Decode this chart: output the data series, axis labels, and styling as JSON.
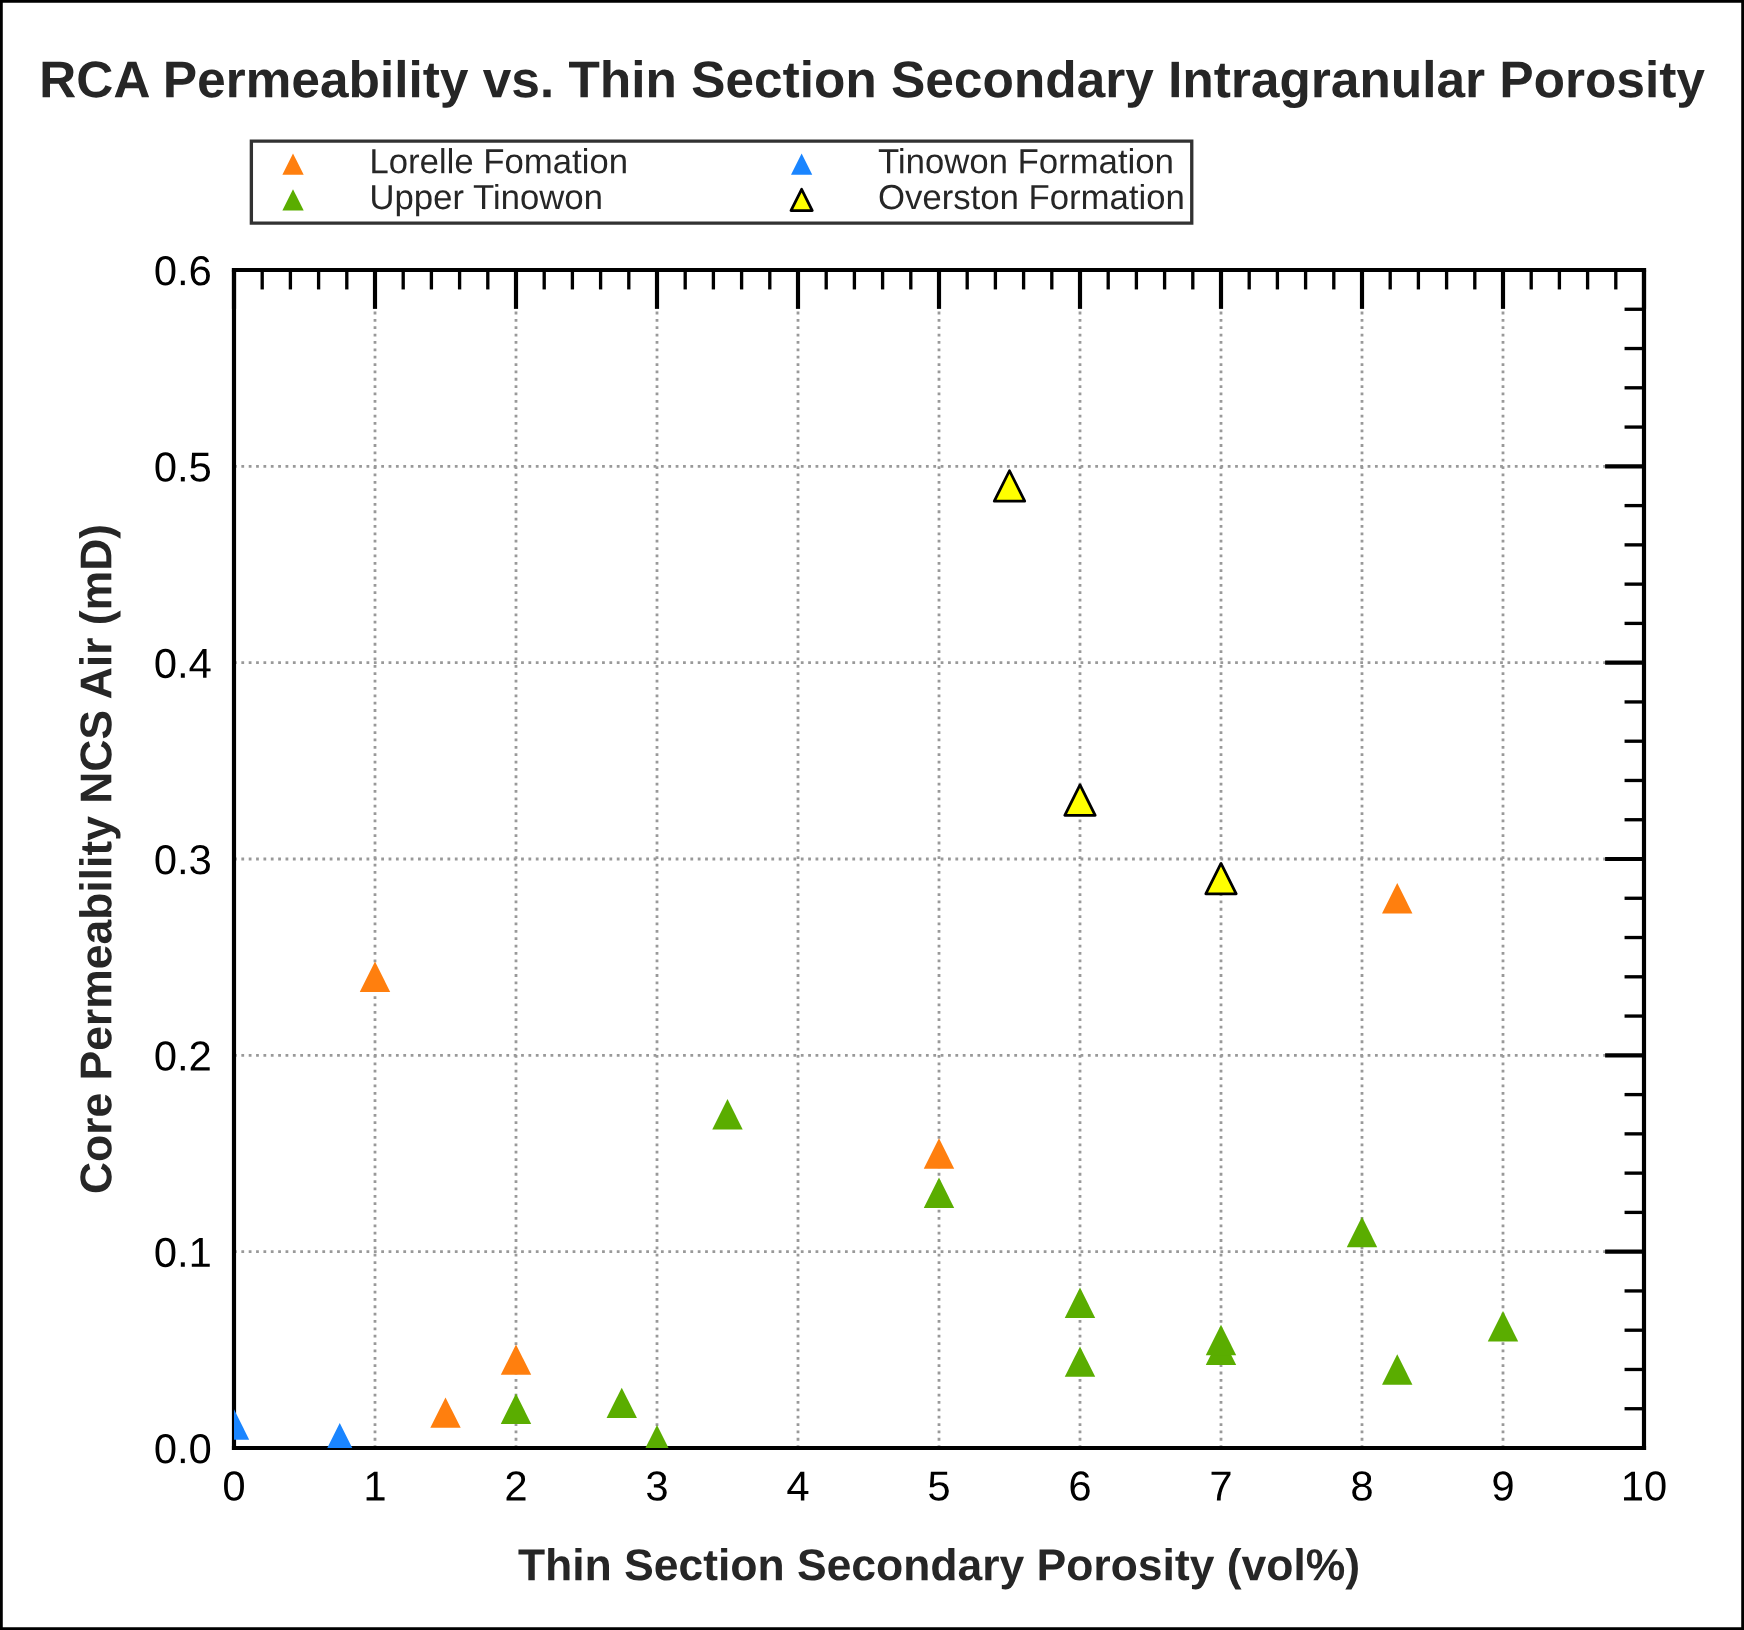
{
  "chart_data": {
    "type": "scatter",
    "title": "RCA Permeability vs. Thin Section Secondary Intragranular Porosity",
    "xlabel": "Thin Section Secondary Porosity (vol%)",
    "ylabel": "Core Permeability NCS Air (mD)",
    "marker": "triangle",
    "grid": true,
    "legend": "top",
    "xlim": [
      0,
      10
    ],
    "xticks": [
      0,
      1,
      2,
      3,
      4,
      5,
      6,
      7,
      8,
      9,
      10
    ],
    "ylim": [
      0,
      0.6
    ],
    "yticks": [
      {
        "value": 0,
        "label": "0.0"
      },
      0.1,
      0.2,
      0.3,
      0.4,
      0.5,
      0.6
    ],
    "series": [
      {
        "name": "Lorelle Fomation",
        "color": "#ff7f0e",
        "x": [
          1,
          1.5,
          2,
          5,
          8.25
        ],
        "values": [
          0.24,
          0.018,
          0.045,
          0.15,
          0.28
        ]
      },
      {
        "name": "Upper Tinowon",
        "color": "#5aad00",
        "x": [
          2,
          2.75,
          3,
          3.5,
          5,
          6,
          6,
          7,
          7,
          8,
          8.25,
          9
        ],
        "values": [
          0.02,
          0.023,
          0.004,
          0.17,
          0.13,
          0.074,
          0.044,
          0.05,
          0.055,
          0.11,
          0.04,
          0.062
        ]
      },
      {
        "name": "Tinowon Formation",
        "color": "#1a85ff",
        "x": [
          0,
          0.75
        ],
        "values": [
          0.012,
          0.005
        ]
      },
      {
        "name": "Overston Formation",
        "color": "#ffff00",
        "x": [
          5.5,
          6,
          7
        ],
        "values": [
          0.49,
          0.33,
          0.29
        ]
      }
    ]
  }
}
